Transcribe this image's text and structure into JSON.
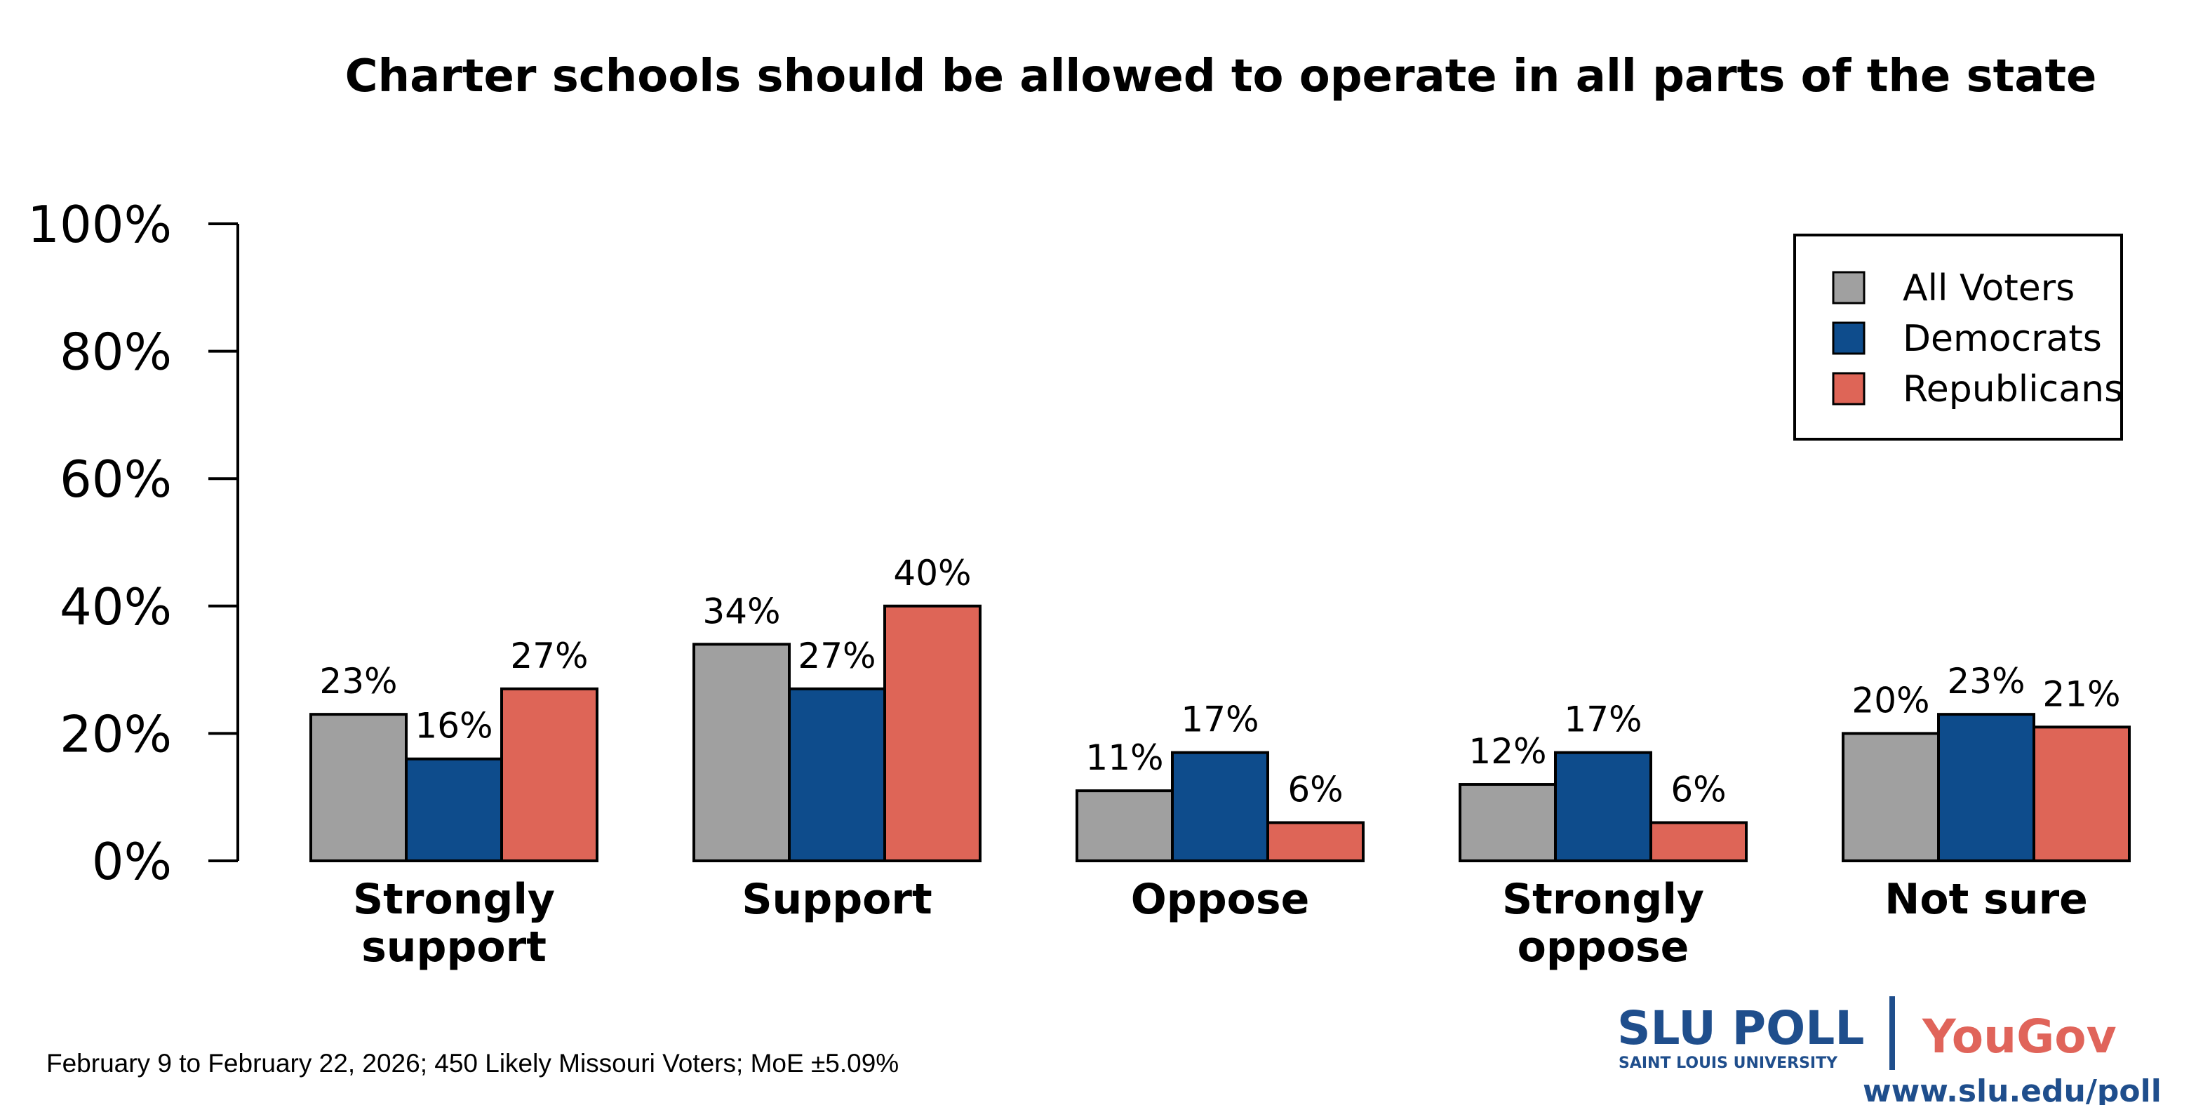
{
  "chart_data": {
    "type": "bar",
    "title": "Charter schools should be allowed to operate in all parts of the state",
    "xlabel": "",
    "ylabel": "",
    "ylim": [
      0,
      100
    ],
    "yticks": [
      "0%",
      "20%",
      "40%",
      "60%",
      "80%",
      "100%"
    ],
    "yticks_values": [
      0,
      20,
      40,
      60,
      80,
      100
    ],
    "grid": false,
    "legend_position": "top-right",
    "categories": [
      [
        "Strongly",
        "support"
      ],
      [
        "Support"
      ],
      [
        "Oppose"
      ],
      [
        "Strongly",
        "oppose"
      ],
      [
        "Not sure"
      ]
    ],
    "series": [
      {
        "name": "All Voters",
        "color": "#a0a0a0",
        "values": [
          23,
          34,
          11,
          12,
          20
        ]
      },
      {
        "name": "Democrats",
        "color": "#0e4c8c",
        "values": [
          16,
          27,
          17,
          17,
          23
        ]
      },
      {
        "name": "Republicans",
        "color": "#de6557",
        "values": [
          27,
          40,
          6,
          6,
          21
        ]
      }
    ],
    "value_suffix": "%"
  },
  "footnote": "February 9 to February 22, 2026; 450 Likely Missouri Voters; MoE ±5.09%",
  "logo": {
    "slu": "SLU POLL",
    "slu_sub": "SAINT LOUIS UNIVERSITY",
    "yougov": "YouGov",
    "url": "www.slu.edu/poll",
    "slu_color": "#1f4e8c",
    "yougov_color": "#e0645a"
  }
}
